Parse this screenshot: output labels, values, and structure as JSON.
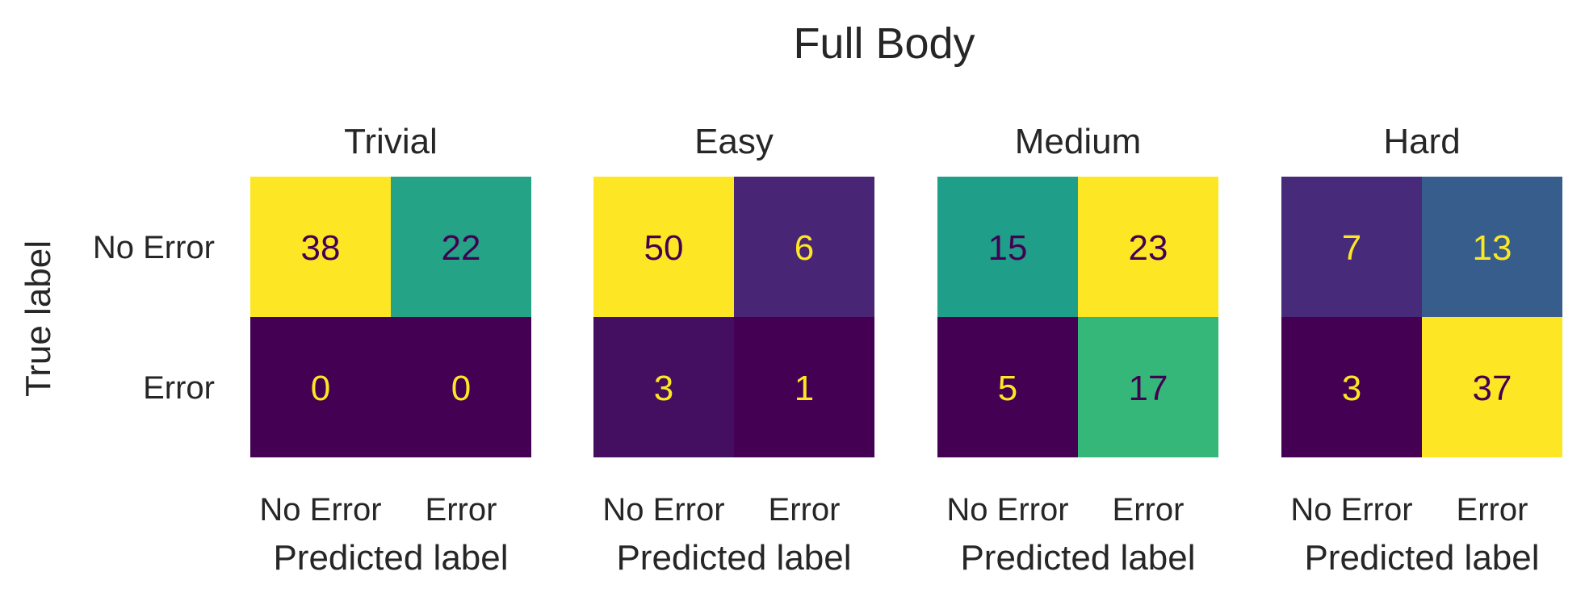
{
  "chart_data": {
    "type": "heatmap",
    "title": "Full Body",
    "ylabel": "True label",
    "xlabel": "Predicted label",
    "row_labels": [
      "No Error",
      "Error"
    ],
    "col_labels": [
      "No Error",
      "Error"
    ],
    "colormap": "viridis",
    "text_colors": {
      "on_dark": "#fde725",
      "on_light": "#440154"
    },
    "panels": [
      {
        "title": "Trivial",
        "matrix": [
          [
            38,
            22
          ],
          [
            0,
            0
          ]
        ]
      },
      {
        "title": "Easy",
        "matrix": [
          [
            50,
            6
          ],
          [
            3,
            1
          ]
        ]
      },
      {
        "title": "Medium",
        "matrix": [
          [
            15,
            23
          ],
          [
            5,
            17
          ]
        ]
      },
      {
        "title": "Hard",
        "matrix": [
          [
            7,
            13
          ],
          [
            3,
            37
          ]
        ]
      }
    ]
  }
}
